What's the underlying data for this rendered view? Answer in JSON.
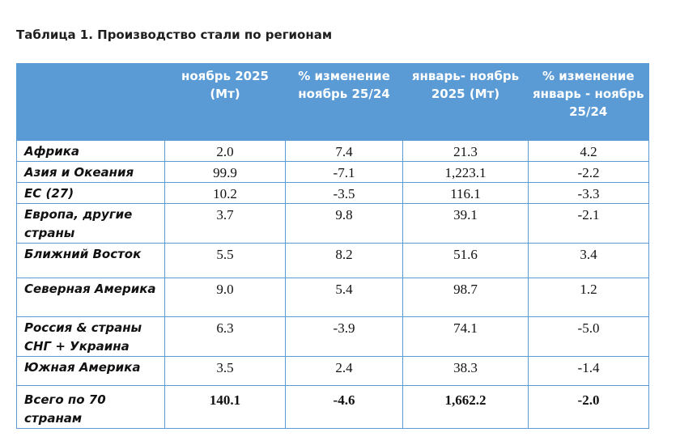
{
  "title": "Таблица 1. Производство стали по регионам",
  "headers": [
    "",
    "ноябрь 2025 (Мт)",
    "% изменение ноябрь 25/24",
    "январь- ноябрь 2025 (Мт)",
    "% изменение январь - ноябрь 25/24"
  ],
  "rows": [
    {
      "region": "Африка",
      "nov": "2.0",
      "nov_pct": "7.4",
      "ytd": "21.3",
      "ytd_pct": "4.2"
    },
    {
      "region": "Азия и Океания",
      "nov": "99.9",
      "nov_pct": "-7.1",
      "ytd": "1,223.1",
      "ytd_pct": "-2.2"
    },
    {
      "region": "ЕС (27)",
      "nov": "10.2",
      "nov_pct": "-3.5",
      "ytd": "116.1",
      "ytd_pct": "-3.3"
    },
    {
      "region": "Европа, другие страны",
      "nov": "3.7",
      "nov_pct": "9.8",
      "ytd": "39.1",
      "ytd_pct": "-2.1"
    },
    {
      "region": "Ближний Восток",
      "nov": "5.5",
      "nov_pct": "8.2",
      "ytd": "51.6",
      "ytd_pct": "3.4"
    },
    {
      "region": "Северная Америка",
      "nov": "9.0",
      "nov_pct": "5.4",
      "ytd": "98.7",
      "ytd_pct": "1.2"
    },
    {
      "region": "Россия & страны СНГ + Украина",
      "nov": "6.3",
      "nov_pct": "-3.9",
      "ytd": "74.1",
      "ytd_pct": "-5.0"
    },
    {
      "region": "Южная Америка",
      "nov": "3.5",
      "nov_pct": "2.4",
      "ytd": "38.3",
      "ytd_pct": "-1.4"
    }
  ],
  "total": {
    "region": "Всего по 70 странам",
    "nov": "140.1",
    "nov_pct": "-4.6",
    "ytd": "1,662.2",
    "ytd_pct": "-2.0"
  }
}
